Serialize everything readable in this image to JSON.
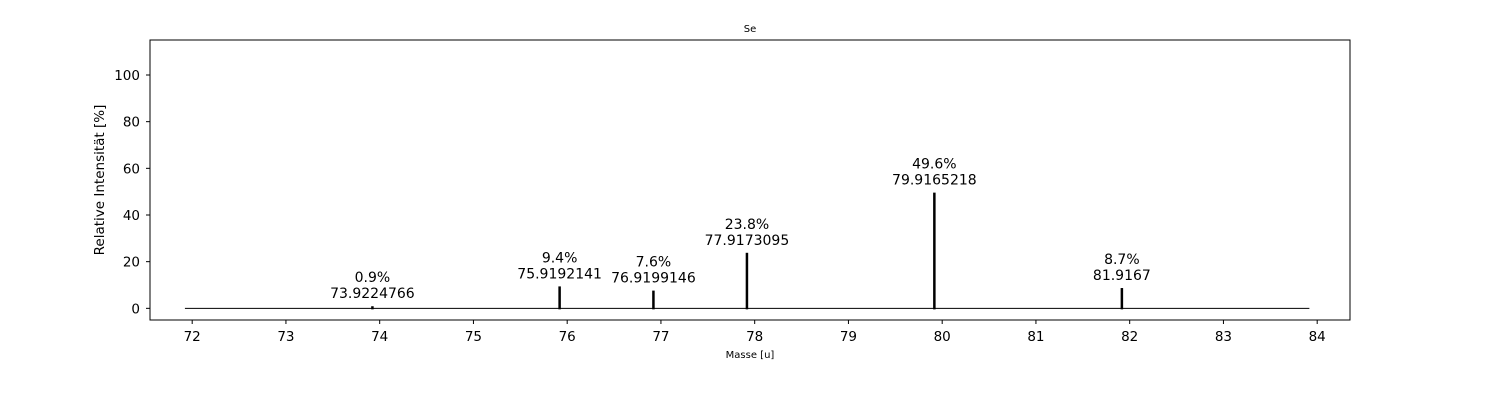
{
  "chart_data": {
    "type": "bar",
    "title": "Se",
    "xlabel": "Masse [u]",
    "ylabel": "Relative Intensität [%]",
    "xlim": [
      71.55,
      84.35
    ],
    "ylim": [
      -5,
      115
    ],
    "xticks": [
      72,
      73,
      74,
      75,
      76,
      77,
      78,
      79,
      80,
      81,
      82,
      83,
      84
    ],
    "yticks": [
      0,
      20,
      40,
      60,
      80,
      100
    ],
    "baseline": {
      "from": 71.9224766,
      "to": 83.9167,
      "value": 0
    },
    "grid": false,
    "peaks": [
      {
        "x": 73.9224766,
        "y": 0.9,
        "label_percent": "0.9%",
        "label_mass": "73.9224766"
      },
      {
        "x": 75.9192141,
        "y": 9.4,
        "label_percent": "9.4%",
        "label_mass": "75.9192141"
      },
      {
        "x": 76.9199146,
        "y": 7.6,
        "label_percent": "7.6%",
        "label_mass": "76.9199146"
      },
      {
        "x": 77.9173095,
        "y": 23.8,
        "label_percent": "23.8%",
        "label_mass": "77.9173095"
      },
      {
        "x": 79.9165218,
        "y": 49.6,
        "label_percent": "49.6%",
        "label_mass": "79.9165218"
      },
      {
        "x": 81.9167,
        "y": 8.7,
        "label_percent": "8.7%",
        "label_mass": "81.9167"
      }
    ]
  }
}
